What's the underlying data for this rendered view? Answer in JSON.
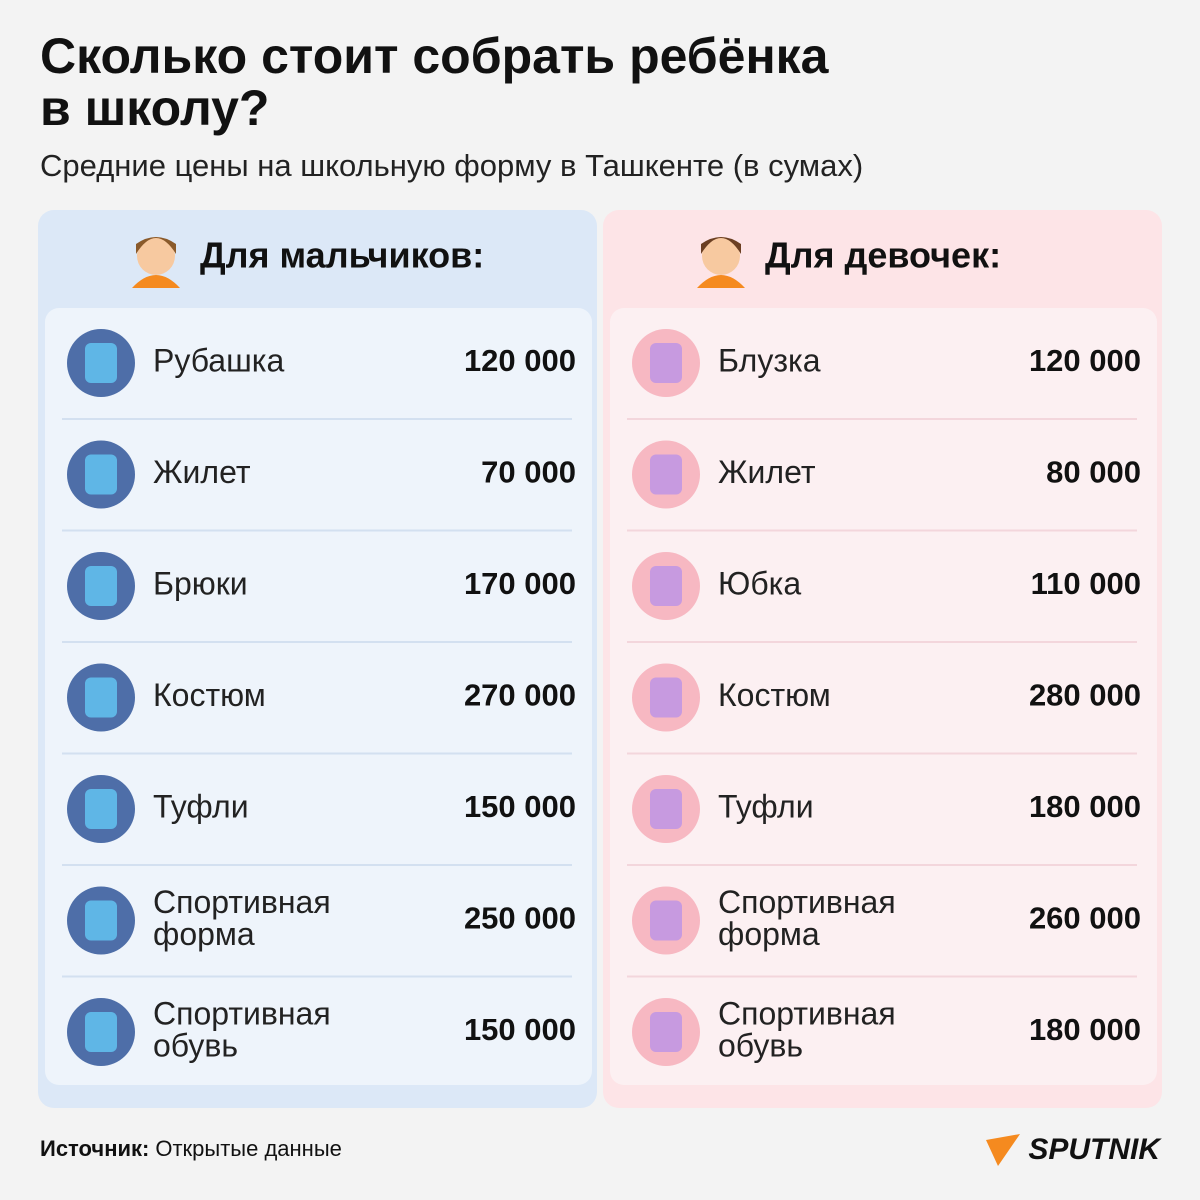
{
  "header": {
    "title": [
      "Сколько стоит собрать ребёнка",
      "в школу?"
    ],
    "subtitle": "Средние цены на школьную форму в Ташкенте (в сумах)"
  },
  "panels": [
    {
      "title": "Для мальчиков:",
      "rows": [
        {
          "item": [
            "Рубашка"
          ],
          "price": "120 000"
        },
        {
          "item": [
            "Жилет"
          ],
          "price": "70 000"
        },
        {
          "item": [
            "Брюки"
          ],
          "price": "170 000"
        },
        {
          "item": [
            "Костюм"
          ],
          "price": "270 000"
        },
        {
          "item": [
            "Туфли"
          ],
          "price": "150 000"
        },
        {
          "item": [
            "Спортивная",
            "форма"
          ],
          "price": "250 000"
        },
        {
          "item": [
            "Спортивная",
            "обувь"
          ],
          "price": "150 000"
        }
      ]
    },
    {
      "title": "Для девочек:",
      "rows": [
        {
          "item": [
            "Блузка"
          ],
          "price": "120 000"
        },
        {
          "item": [
            "Жилет"
          ],
          "price": "80 000"
        },
        {
          "item": [
            "Юбка"
          ],
          "price": "110 000"
        },
        {
          "item": [
            "Костюм"
          ],
          "price": "280 000"
        },
        {
          "item": [
            "Туфли"
          ],
          "price": "180 000"
        },
        {
          "item": [
            "Спортивная",
            "форма"
          ],
          "price": "260 000"
        },
        {
          "item": [
            "Спортивная",
            "обувь"
          ],
          "price": "180 000"
        }
      ]
    }
  ],
  "source": {
    "label": "Источник:",
    "text": "Открытые данные"
  },
  "logo": "SPUTNIK"
}
